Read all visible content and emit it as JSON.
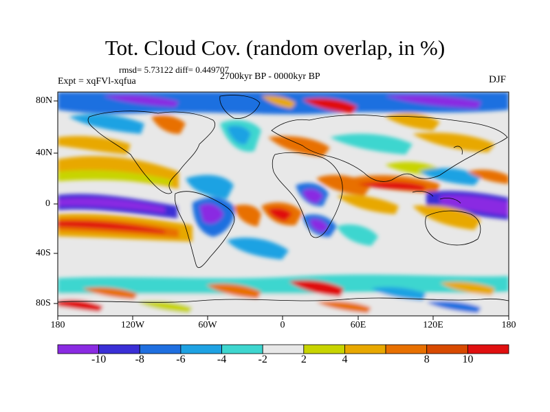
{
  "title": "Tot. Cloud Cov. (random overlap, in %)",
  "stats": "rmsd= 5.73122 diff= 0.449707",
  "experiment": "Expt = xqFVl-xqfua",
  "period": "2700kyr BP - 0000kyr BP",
  "season": "DJF",
  "lat_ticks": [
    "80N",
    "40N",
    "0",
    "40S",
    "80S"
  ],
  "lon_ticks": [
    "180",
    "120W",
    "60W",
    "0",
    "60E",
    "120E",
    "180"
  ],
  "colorbar": {
    "labels": [
      "-10",
      "-8",
      "-6",
      "-4",
      "-2",
      "2",
      "4",
      "8",
      "10"
    ],
    "colors": [
      "#8a2be2",
      "#3a2fd6",
      "#1f6fe0",
      "#1ea2e3",
      "#3ed6cf",
      "#e8e8e8",
      "#c8d400",
      "#e8a800",
      "#e87000",
      "#d84a00",
      "#e01010"
    ]
  },
  "colors": {
    "land_outline": "#000000",
    "neutral": "#e8e8e8"
  }
}
